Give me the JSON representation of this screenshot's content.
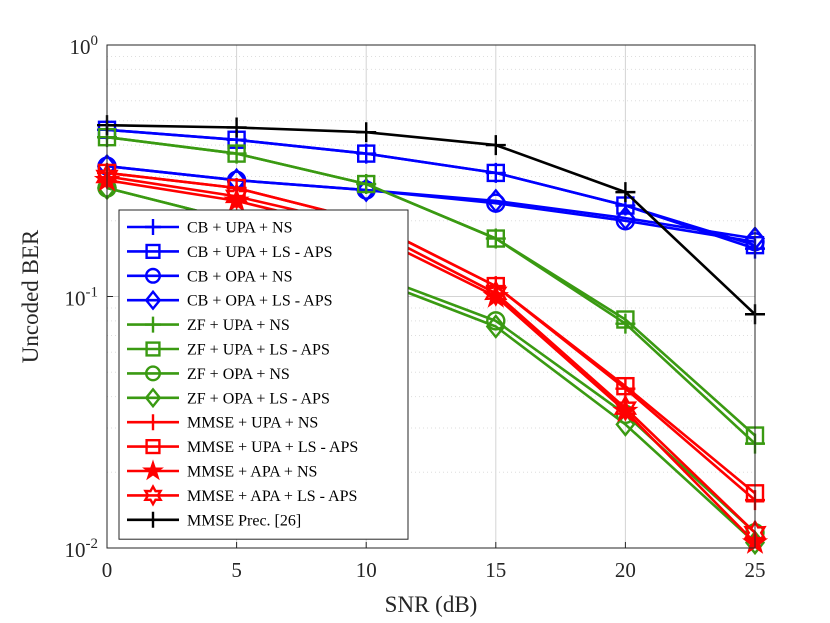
{
  "chart_data": {
    "type": "line",
    "xlabel": "SNR (dB)",
    "ylabel": "Uncoded BER",
    "xscale": "linear",
    "yscale": "log",
    "xlim": [
      0,
      25
    ],
    "ylim": [
      0.01,
      1
    ],
    "grid": true,
    "legend_position": "bottom-left",
    "x_ticks": [
      0,
      5,
      10,
      15,
      20,
      25
    ],
    "y_ticks": [
      {
        "value": 0.01,
        "base": "10",
        "exp": "-2"
      },
      {
        "value": 0.1,
        "base": "10",
        "exp": "-1"
      },
      {
        "value": 1,
        "base": "10",
        "exp": "0"
      }
    ],
    "x": [
      0,
      5,
      10,
      15,
      20,
      25
    ],
    "series": [
      {
        "name": "CB + UPA + NS",
        "color": "#0000ff",
        "marker": "plus",
        "values": [
          0.46,
          0.42,
          0.37,
          0.31,
          0.23,
          0.155
        ]
      },
      {
        "name": "CB + UPA + LS - APS",
        "color": "#0000ff",
        "marker": "square",
        "values": [
          0.46,
          0.42,
          0.37,
          0.31,
          0.23,
          0.16
        ]
      },
      {
        "name": "CB + OPA + NS",
        "color": "#0000ff",
        "marker": "circle",
        "values": [
          0.33,
          0.29,
          0.265,
          0.235,
          0.2,
          0.165
        ]
      },
      {
        "name": "CB + OPA + LS - APS",
        "color": "#0000ff",
        "marker": "diamond",
        "values": [
          0.33,
          0.29,
          0.265,
          0.24,
          0.205,
          0.17
        ]
      },
      {
        "name": "ZF + UPA + NS",
        "color": "#3a9a12",
        "marker": "plus",
        "values": [
          0.43,
          0.37,
          0.28,
          0.17,
          0.078,
          0.026
        ]
      },
      {
        "name": "ZF + UPA + LS - APS",
        "color": "#3a9a12",
        "marker": "square",
        "values": [
          0.43,
          0.37,
          0.28,
          0.17,
          0.081,
          0.028
        ]
      },
      {
        "name": "ZF + OPA + NS",
        "color": "#3a9a12",
        "marker": "circle",
        "values": [
          0.27,
          0.2,
          0.125,
          0.08,
          0.034,
          0.0115
        ]
      },
      {
        "name": "ZF + OPA + LS - APS",
        "color": "#3a9a12",
        "marker": "diamond",
        "values": [
          0.27,
          0.2,
          0.12,
          0.076,
          0.031,
          0.0105
        ]
      },
      {
        "name": "MMSE + UPA + NS",
        "color": "#ff0000",
        "marker": "plus",
        "values": [
          0.31,
          0.27,
          0.2,
          0.11,
          0.043,
          0.0155
        ]
      },
      {
        "name": "MMSE + UPA + LS - APS",
        "color": "#ff0000",
        "marker": "square",
        "values": [
          0.31,
          0.27,
          0.2,
          0.11,
          0.044,
          0.0165
        ]
      },
      {
        "name": "MMSE + APA + NS",
        "color": "#ff0000",
        "marker": "star",
        "values": [
          0.29,
          0.24,
          0.18,
          0.1,
          0.035,
          0.0105
        ]
      },
      {
        "name": "MMSE + APA + LS - APS",
        "color": "#ff0000",
        "marker": "hexagram",
        "values": [
          0.3,
          0.25,
          0.19,
          0.103,
          0.036,
          0.0115
        ]
      },
      {
        "name": "MMSE Prec. [26]",
        "color": "#000000",
        "marker": "plus",
        "values": [
          0.48,
          0.47,
          0.45,
          0.4,
          0.26,
          0.085
        ]
      }
    ]
  }
}
